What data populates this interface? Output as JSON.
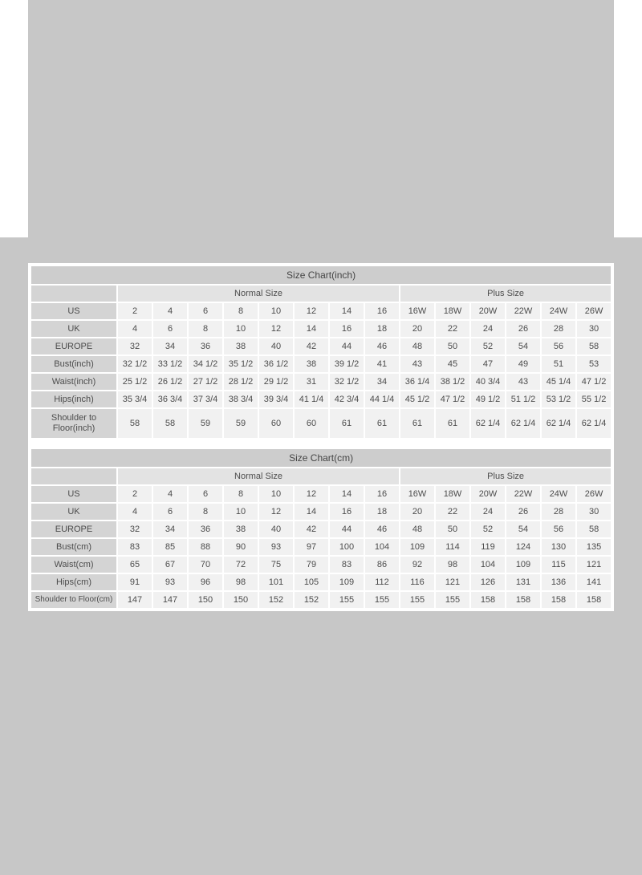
{
  "colors": {
    "page_background": "#ffffff",
    "section_background": "#c7c7c7",
    "title_bar_background": "#cdcdcd",
    "label_cell_background": "#d4d4d4",
    "group_header_background": "#e3e3e3",
    "data_cell_background": "#f1f1f1",
    "text": "#4c4c4c"
  },
  "tables": [
    {
      "title": "Size Chart(inch)",
      "normal_label": "Normal Size",
      "plus_label": "Plus Size",
      "rows": [
        {
          "label": "US",
          "values": [
            "2",
            "4",
            "6",
            "8",
            "10",
            "12",
            "14",
            "16",
            "16W",
            "18W",
            "20W",
            "22W",
            "24W",
            "26W"
          ]
        },
        {
          "label": "UK",
          "values": [
            "4",
            "6",
            "8",
            "10",
            "12",
            "14",
            "16",
            "18",
            "20",
            "22",
            "24",
            "26",
            "28",
            "30"
          ]
        },
        {
          "label": "EUROPE",
          "values": [
            "32",
            "34",
            "36",
            "38",
            "40",
            "42",
            "44",
            "46",
            "48",
            "50",
            "52",
            "54",
            "56",
            "58"
          ]
        },
        {
          "label": "Bust(inch)",
          "values": [
            "32 1/2",
            "33 1/2",
            "34 1/2",
            "35 1/2",
            "36 1/2",
            "38",
            "39 1/2",
            "41",
            "43",
            "45",
            "47",
            "49",
            "51",
            "53"
          ]
        },
        {
          "label": "Waist(inch)",
          "values": [
            "25 1/2",
            "26 1/2",
            "27 1/2",
            "28 1/2",
            "29 1/2",
            "31",
            "32 1/2",
            "34",
            "36 1/4",
            "38 1/2",
            "40 3/4",
            "43",
            "45 1/4",
            "47 1/2"
          ]
        },
        {
          "label": "Hips(inch)",
          "values": [
            "35 3/4",
            "36 3/4",
            "37 3/4",
            "38 3/4",
            "39 3/4",
            "41 1/4",
            "42 3/4",
            "44 1/4",
            "45 1/2",
            "47 1/2",
            "49 1/2",
            "51 1/2",
            "53 1/2",
            "55 1/2"
          ]
        },
        {
          "label": "Shoulder to Floor(inch)",
          "values": [
            "58",
            "58",
            "59",
            "59",
            "60",
            "60",
            "61",
            "61",
            "61",
            "61",
            "62 1/4",
            "62 1/4",
            "62 1/4",
            "62 1/4"
          ]
        }
      ]
    },
    {
      "title": "Size Chart(cm)",
      "normal_label": "Normal Size",
      "plus_label": "Plus Size",
      "rows": [
        {
          "label": "US",
          "values": [
            "2",
            "4",
            "6",
            "8",
            "10",
            "12",
            "14",
            "16",
            "16W",
            "18W",
            "20W",
            "22W",
            "24W",
            "26W"
          ]
        },
        {
          "label": "UK",
          "values": [
            "4",
            "6",
            "8",
            "10",
            "12",
            "14",
            "16",
            "18",
            "20",
            "22",
            "24",
            "26",
            "28",
            "30"
          ]
        },
        {
          "label": "EUROPE",
          "values": [
            "32",
            "34",
            "36",
            "38",
            "40",
            "42",
            "44",
            "46",
            "48",
            "50",
            "52",
            "54",
            "56",
            "58"
          ]
        },
        {
          "label": "Bust(cm)",
          "values": [
            "83",
            "85",
            "88",
            "90",
            "93",
            "97",
            "100",
            "104",
            "109",
            "114",
            "119",
            "124",
            "130",
            "135"
          ]
        },
        {
          "label": "Waist(cm)",
          "values": [
            "65",
            "67",
            "70",
            "72",
            "75",
            "79",
            "83",
            "86",
            "92",
            "98",
            "104",
            "109",
            "115",
            "121"
          ]
        },
        {
          "label": "Hips(cm)",
          "values": [
            "91",
            "93",
            "96",
            "98",
            "101",
            "105",
            "109",
            "112",
            "116",
            "121",
            "126",
            "131",
            "136",
            "141"
          ]
        },
        {
          "label": "Shoulder to Floor(cm)",
          "values": [
            "147",
            "147",
            "150",
            "150",
            "152",
            "152",
            "155",
            "155",
            "155",
            "155",
            "158",
            "158",
            "158",
            "158"
          ]
        }
      ]
    }
  ]
}
